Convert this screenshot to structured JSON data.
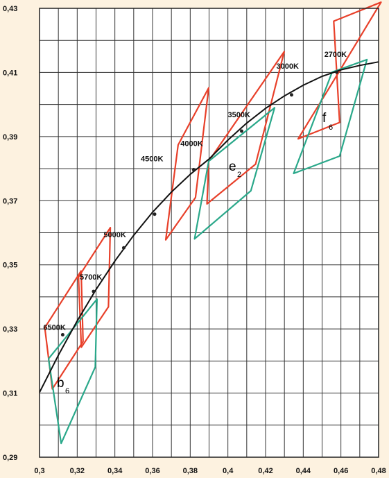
{
  "chart_data": {
    "type": "line",
    "title": "",
    "xlabel": "",
    "ylabel": "",
    "xlim": [
      0.3,
      0.48
    ],
    "ylim": [
      0.29,
      0.43
    ],
    "grid": true,
    "x_tick_values": [
      0.3,
      0.32,
      0.34,
      0.36,
      0.38,
      0.4,
      0.42,
      0.44,
      0.46,
      0.48
    ],
    "x_tick_labels": [
      "0,3",
      "0,32",
      "0,34",
      "0,36",
      "0,38",
      "0,4",
      "0,42",
      "0,44",
      "0,46",
      "0,48"
    ],
    "y_tick_values": [
      0.29,
      0.31,
      0.33,
      0.35,
      0.37,
      0.39,
      0.41,
      0.43
    ],
    "y_tick_labels": [
      "0,29",
      "0,31",
      "0,33",
      "0,35",
      "0,37",
      "0,39",
      "0,41",
      "0,43"
    ],
    "planckian_locus": {
      "x": [
        0.3,
        0.31,
        0.32,
        0.33,
        0.34,
        0.35,
        0.36,
        0.37,
        0.38,
        0.39,
        0.4,
        0.41,
        0.42,
        0.43,
        0.44,
        0.45,
        0.46,
        0.47,
        0.48
      ],
      "y": [
        0.3102,
        0.3218,
        0.3325,
        0.3423,
        0.3512,
        0.3592,
        0.3664,
        0.3727,
        0.3782,
        0.383,
        0.3889,
        0.3942,
        0.3988,
        0.4027,
        0.406,
        0.4088,
        0.4108,
        0.4122,
        0.4133
      ],
      "color": "#111111"
    },
    "cct_points": [
      {
        "label": "6500K",
        "x": 0.3123,
        "y": 0.3282
      },
      {
        "label": "5700K",
        "x": 0.3287,
        "y": 0.3417
      },
      {
        "label": "5000K",
        "x": 0.3447,
        "y": 0.3553
      },
      {
        "label": "4500K",
        "x": 0.3611,
        "y": 0.3658
      },
      {
        "label": "4000K",
        "x": 0.3818,
        "y": 0.3797
      },
      {
        "label": "3500K",
        "x": 0.4073,
        "y": 0.3917
      },
      {
        "label": "3000K",
        "x": 0.4338,
        "y": 0.403
      },
      {
        "label": "2700K",
        "x": 0.4578,
        "y": 0.4101
      }
    ],
    "series": [
      {
        "color": "#e8402a",
        "quadrangles": [
          [
            [
              0.3028,
              0.3304
            ],
            [
              0.3221,
              0.3481
            ],
            [
              0.3231,
              0.3261
            ],
            [
              0.3068,
              0.3113
            ]
          ],
          [
            [
              0.3207,
              0.3462
            ],
            [
              0.3376,
              0.3616
            ],
            [
              0.3366,
              0.3369
            ],
            [
              0.3222,
              0.3243
            ]
          ],
          [
            [
              0.3736,
              0.3874
            ],
            [
              0.3898,
              0.4052
            ],
            [
              0.3828,
              0.371
            ],
            [
              0.367,
              0.3578
            ]
          ],
          [
            [
              0.3889,
              0.369
            ],
            [
              0.3898,
              0.3823
            ],
            [
              0.4299,
              0.4165
            ],
            [
              0.4147,
              0.3814
            ]
          ],
          [
            [
              0.4373,
              0.3893
            ],
            [
              0.4593,
              0.4105
            ],
            [
              0.4813,
              0.4319
            ],
            [
              0.4562,
              0.426
            ],
            [
              0.4593,
              0.3944
            ]
          ]
        ]
      },
      {
        "color": "#2aa88a",
        "quadrangles": [
          [
            [
              0.3048,
              0.3207
            ],
            [
              0.3305,
              0.3393
            ],
            [
              0.3296,
              0.3181
            ],
            [
              0.3115,
              0.2943
            ]
          ],
          [
            [
              0.3823,
              0.3581
            ],
            [
              0.3898,
              0.3823
            ],
            [
              0.4248,
              0.399
            ],
            [
              0.4122,
              0.3731
            ]
          ],
          [
            [
              0.4349,
              0.3785
            ],
            [
              0.4553,
              0.4101
            ],
            [
              0.4738,
              0.414
            ],
            [
              0.4593,
              0.3839
            ]
          ]
        ]
      }
    ],
    "bin_labels": [
      {
        "letter": "b",
        "sub": "6"
      },
      {
        "letter": "e",
        "sub": "2"
      },
      {
        "letter": "f",
        "sub": "6"
      }
    ]
  }
}
